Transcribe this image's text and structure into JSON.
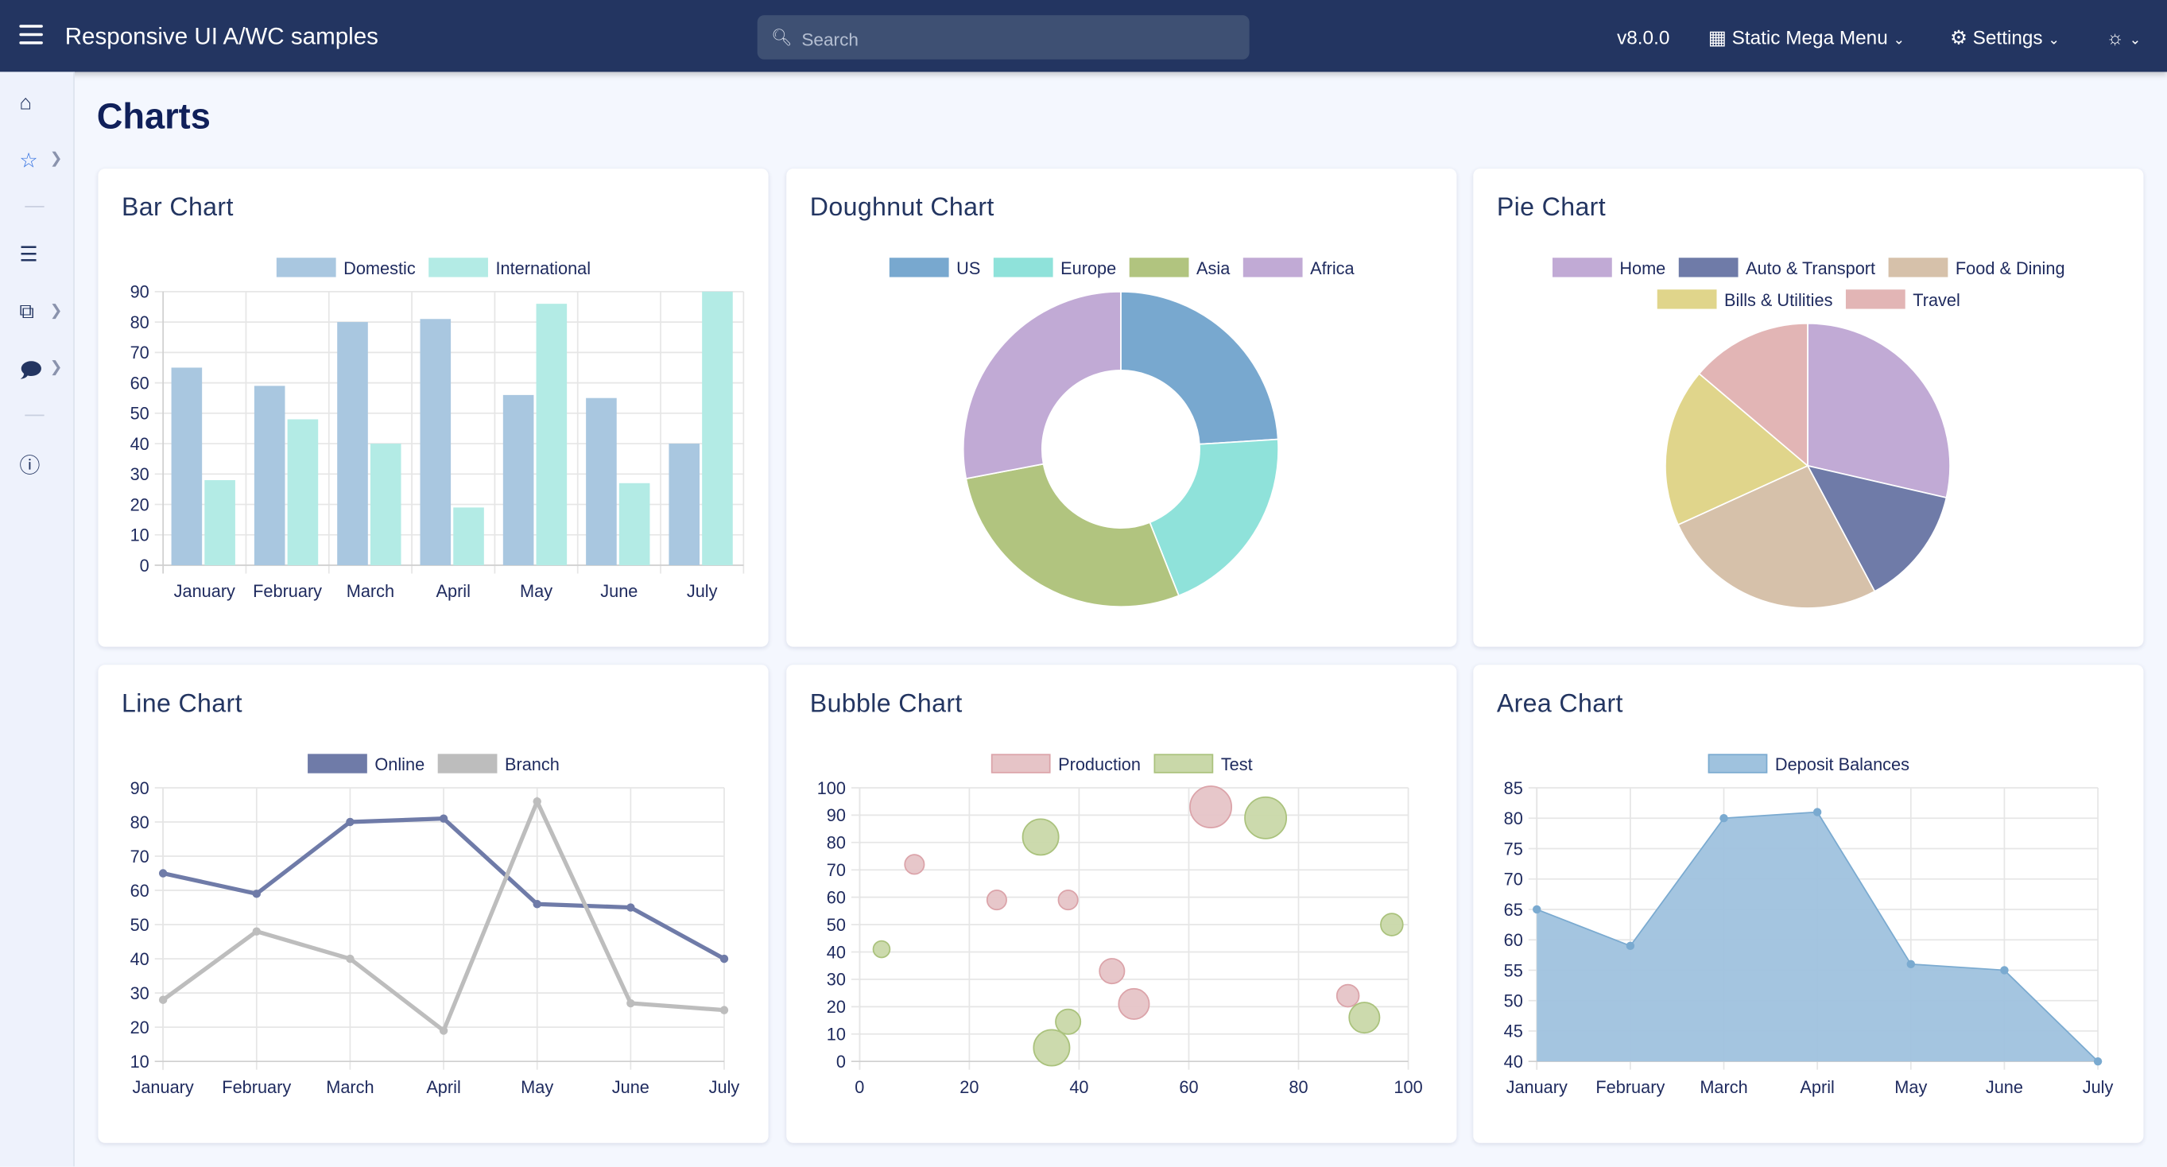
{
  "header": {
    "title": "Responsive UI A/WC samples",
    "search_placeholder": "Search",
    "version": "v8.0.0",
    "mega_menu": "Static Mega Menu",
    "settings": "Settings",
    "icons": {
      "menu": "hamburger-icon",
      "search": "search-icon",
      "mega": "building-icon",
      "settings": "gear-icon",
      "theme": "sun-icon"
    }
  },
  "sidebar": {
    "items": [
      {
        "icon": "home-icon"
      },
      {
        "icon": "star-icon",
        "expandable": true
      },
      {
        "icon": "form-icon"
      },
      {
        "icon": "components-icon",
        "expandable": true
      },
      {
        "icon": "chat-icon",
        "expandable": true
      },
      {
        "icon": "info-icon"
      }
    ]
  },
  "page": {
    "title": "Charts"
  },
  "chart_data": [
    {
      "id": "bar",
      "title": "Bar Chart",
      "type": "bar",
      "categories": [
        "January",
        "February",
        "March",
        "April",
        "May",
        "June",
        "July"
      ],
      "ylim": [
        0,
        90
      ],
      "yticks": [
        0,
        10,
        20,
        30,
        40,
        50,
        60,
        70,
        80,
        90
      ],
      "grid": true,
      "legend": "top",
      "series": [
        {
          "name": "Domestic",
          "color": "#a9c7e0",
          "values": [
            65,
            59,
            80,
            81,
            56,
            55,
            40
          ]
        },
        {
          "name": "International",
          "color": "#b3ebe5",
          "values": [
            28,
            48,
            40,
            19,
            86,
            27,
            90
          ]
        }
      ]
    },
    {
      "id": "doughnut",
      "title": "Doughnut Chart",
      "type": "doughnut",
      "legend": "top",
      "labels": [
        "US",
        "Europe",
        "Asia",
        "Africa"
      ],
      "values": [
        24,
        20,
        28,
        28
      ],
      "colors": [
        "#78a8cf",
        "#8fe2da",
        "#b1c47f",
        "#c1aad5"
      ]
    },
    {
      "id": "pie",
      "title": "Pie Chart",
      "type": "pie",
      "legend": "top",
      "labels": [
        "Home",
        "Auto & Transport",
        "Food & Dining",
        "Bills & Utilities",
        "Travel"
      ],
      "values": [
        28.6,
        13.6,
        26,
        18,
        13.8
      ],
      "colors": [
        "#c1aad5",
        "#6f7ba8",
        "#d6c1aa",
        "#e0d58b",
        "#e2b5b5"
      ]
    },
    {
      "id": "line",
      "title": "Line Chart",
      "type": "line",
      "categories": [
        "January",
        "February",
        "March",
        "April",
        "May",
        "June",
        "July"
      ],
      "ylim": [
        10,
        90
      ],
      "yticks": [
        10,
        20,
        30,
        40,
        50,
        60,
        70,
        80,
        90
      ],
      "grid": true,
      "legend": "top",
      "series": [
        {
          "name": "Online",
          "color": "#6f7ba8",
          "values": [
            65,
            59,
            80,
            81,
            56,
            55,
            40
          ]
        },
        {
          "name": "Branch",
          "color": "#bdbdbd",
          "values": [
            28,
            48,
            40,
            19,
            86,
            27,
            25
          ]
        }
      ]
    },
    {
      "id": "bubble",
      "title": "Bubble Chart",
      "type": "scatter",
      "xlim": [
        0,
        100
      ],
      "ylim": [
        0,
        100
      ],
      "xticks": [
        0,
        20,
        40,
        60,
        80,
        100
      ],
      "yticks": [
        0,
        10,
        20,
        30,
        40,
        50,
        60,
        70,
        80,
        90,
        100
      ],
      "grid": true,
      "legend": "top",
      "series": [
        {
          "name": "Production",
          "color": "#e6c4c7",
          "stroke": "#dba3a9",
          "points": [
            [
              10,
              72,
              7
            ],
            [
              25,
              59,
              7
            ],
            [
              38,
              59,
              7
            ],
            [
              46,
              33,
              9
            ],
            [
              50,
              21,
              11
            ],
            [
              64,
              93,
              15
            ],
            [
              89,
              24,
              8
            ]
          ]
        },
        {
          "name": "Test",
          "color": "#c9d8a9",
          "stroke": "#aac27c",
          "points": [
            [
              4,
              41,
              6
            ],
            [
              33,
              82,
              13
            ],
            [
              38,
              14.5,
              9
            ],
            [
              35,
              5,
              13
            ],
            [
              74,
              89,
              15
            ],
            [
              97,
              50,
              8
            ],
            [
              92,
              16,
              11
            ]
          ]
        }
      ]
    },
    {
      "id": "area",
      "title": "Area Chart",
      "type": "area",
      "categories": [
        "January",
        "February",
        "March",
        "April",
        "May",
        "June",
        "July"
      ],
      "ylim": [
        40,
        85
      ],
      "yticks": [
        40,
        45,
        50,
        55,
        60,
        65,
        70,
        75,
        80,
        85
      ],
      "grid": true,
      "legend": "top",
      "series": [
        {
          "name": "Deposit Balances",
          "color": "#9fc2de",
          "stroke": "#7aaad0",
          "values": [
            65,
            59,
            80,
            81,
            56,
            55,
            40
          ]
        }
      ]
    }
  ]
}
